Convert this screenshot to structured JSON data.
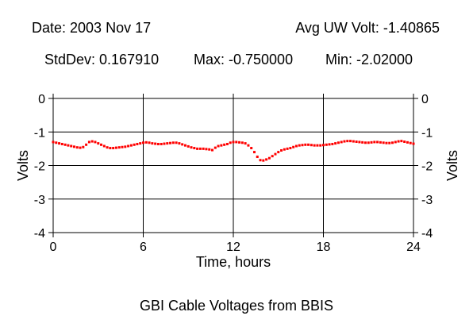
{
  "header": {
    "date": "Date: 2003 Nov 17",
    "avg": "Avg UW Volt: -1.40865",
    "stddev": "StdDev: 0.167910",
    "max": "Max: -0.750000",
    "min": "Min: -2.02000"
  },
  "caption": "GBI Cable Voltages from BBIS",
  "chart_data": {
    "type": "scatter",
    "xlabel": "Time, hours",
    "ylabel": "Volts",
    "xlim": [
      0,
      24
    ],
    "ylim": [
      -4,
      0
    ],
    "xticks": [
      0,
      6,
      12,
      18,
      24
    ],
    "yticks": [
      0,
      -1,
      -2,
      -3,
      -4
    ],
    "grid": true,
    "marker_color": "#ff0000",
    "x": [
      0.0,
      0.2,
      0.4,
      0.6,
      0.8,
      1.0,
      1.2,
      1.4,
      1.6,
      1.8,
      2.0,
      2.2,
      2.4,
      2.6,
      2.8,
      3.0,
      3.2,
      3.4,
      3.6,
      3.8,
      4.0,
      4.2,
      4.4,
      4.6,
      4.8,
      5.0,
      5.2,
      5.4,
      5.6,
      5.8,
      6.0,
      6.2,
      6.4,
      6.6,
      6.8,
      7.0,
      7.2,
      7.4,
      7.6,
      7.8,
      8.0,
      8.2,
      8.4,
      8.6,
      8.8,
      9.0,
      9.2,
      9.4,
      9.6,
      9.8,
      10.0,
      10.2,
      10.4,
      10.6,
      10.8,
      11.0,
      11.2,
      11.4,
      11.6,
      11.8,
      12.0,
      12.2,
      12.4,
      12.6,
      12.8,
      13.0,
      13.2,
      13.4,
      13.6,
      13.8,
      14.0,
      14.2,
      14.4,
      14.6,
      14.8,
      15.0,
      15.2,
      15.4,
      15.6,
      15.8,
      16.0,
      16.2,
      16.4,
      16.6,
      16.8,
      17.0,
      17.2,
      17.4,
      17.6,
      17.8,
      18.0,
      18.2,
      18.4,
      18.6,
      18.8,
      19.0,
      19.2,
      19.4,
      19.6,
      19.8,
      20.0,
      20.2,
      20.4,
      20.6,
      20.8,
      21.0,
      21.2,
      21.4,
      21.6,
      21.8,
      22.0,
      22.2,
      22.4,
      22.6,
      22.8,
      23.0,
      23.2,
      23.4,
      23.6,
      23.8,
      24.0
    ],
    "y": [
      -1.3,
      -1.32,
      -1.34,
      -1.36,
      -1.38,
      -1.4,
      -1.42,
      -1.44,
      -1.46,
      -1.47,
      -1.45,
      -1.38,
      -1.3,
      -1.28,
      -1.3,
      -1.34,
      -1.38,
      -1.42,
      -1.46,
      -1.48,
      -1.48,
      -1.47,
      -1.46,
      -1.45,
      -1.44,
      -1.42,
      -1.4,
      -1.38,
      -1.36,
      -1.34,
      -1.32,
      -1.31,
      -1.32,
      -1.34,
      -1.35,
      -1.36,
      -1.36,
      -1.35,
      -1.34,
      -1.33,
      -1.32,
      -1.32,
      -1.34,
      -1.37,
      -1.4,
      -1.43,
      -1.46,
      -1.48,
      -1.5,
      -1.5,
      -1.5,
      -1.51,
      -1.52,
      -1.54,
      -1.47,
      -1.42,
      -1.4,
      -1.38,
      -1.36,
      -1.32,
      -1.3,
      -1.3,
      -1.31,
      -1.32,
      -1.34,
      -1.4,
      -1.48,
      -1.6,
      -1.74,
      -1.84,
      -1.85,
      -1.82,
      -1.78,
      -1.72,
      -1.66,
      -1.6,
      -1.55,
      -1.52,
      -1.5,
      -1.48,
      -1.45,
      -1.42,
      -1.4,
      -1.39,
      -1.38,
      -1.38,
      -1.39,
      -1.4,
      -1.4,
      -1.4,
      -1.39,
      -1.38,
      -1.37,
      -1.36,
      -1.34,
      -1.32,
      -1.3,
      -1.28,
      -1.27,
      -1.27,
      -1.28,
      -1.29,
      -1.3,
      -1.31,
      -1.32,
      -1.32,
      -1.31,
      -1.3,
      -1.3,
      -1.31,
      -1.32,
      -1.33,
      -1.33,
      -1.32,
      -1.3,
      -1.28,
      -1.27,
      -1.29,
      -1.31,
      -1.33,
      -1.35
    ]
  }
}
